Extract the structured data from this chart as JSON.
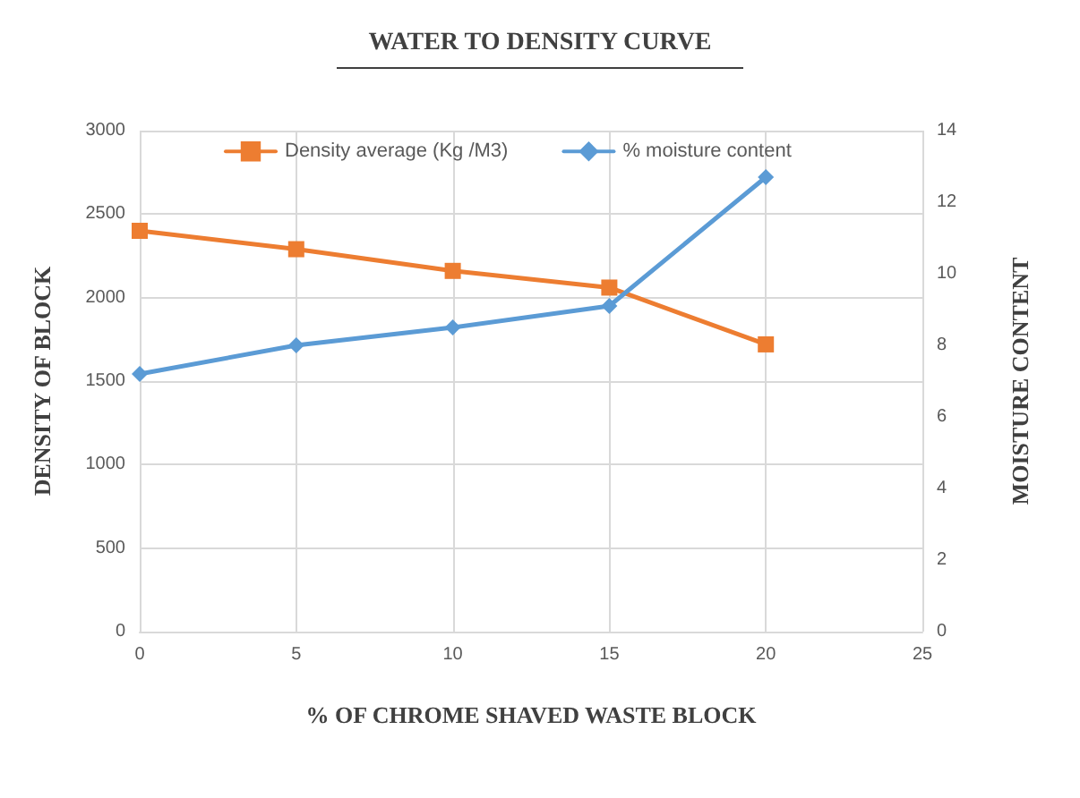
{
  "chart_data": {
    "type": "line",
    "title": "WATER TO DENSITY CURVE",
    "xlabel": "% OF CHROME SHAVED WASTE BLOCK",
    "ylabel": "DENSITY OF BLOCK",
    "y2label": "MOISTURE CONTENT",
    "x": [
      0,
      5,
      10,
      15,
      20
    ],
    "series": [
      {
        "name": "Density average (Kg /M3)",
        "color": "#ed7d31",
        "marker": "square",
        "values": [
          2400,
          2290,
          2160,
          2060,
          1720
        ]
      },
      {
        "name": "% moisture content",
        "color": "#5b9bd5",
        "marker": "diamond",
        "axis": "y2",
        "values": [
          7.2,
          8.0,
          8.5,
          9.1,
          12.7
        ]
      }
    ],
    "xlim": [
      0,
      25
    ],
    "xticks": [
      0,
      5,
      10,
      15,
      20,
      25
    ],
    "ylim": [
      0,
      3000
    ],
    "yticks": [
      0,
      500,
      1000,
      1500,
      2000,
      2500,
      3000
    ],
    "y2lim": [
      0,
      14
    ],
    "y2ticks": [
      0,
      2,
      4,
      6,
      8,
      10,
      12,
      14
    ],
    "grid": true,
    "legend": "top",
    "line_style": "solid"
  }
}
